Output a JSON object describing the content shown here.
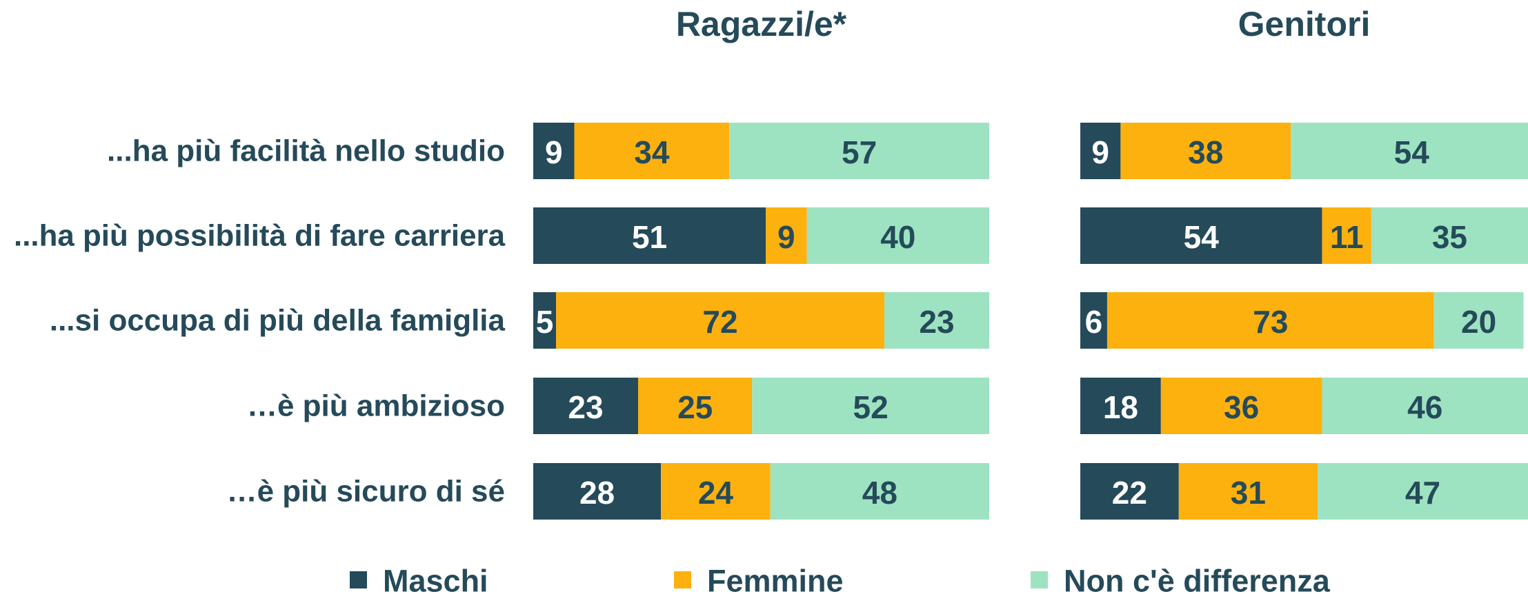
{
  "chart_data": [
    {
      "type": "bar",
      "orientation": "horizontal",
      "stacked": true,
      "title": "Ragazzi/e*",
      "categories": [
        "...ha più facilità nello studio",
        "...ha più possibilità di fare carriera",
        "...si occupa di più della famiglia",
        "…è più ambizioso",
        "…è più sicuro di sé"
      ],
      "xlim": [
        0,
        100
      ],
      "series": [
        {
          "name": "Maschi",
          "color": "#254a5a",
          "values": [
            9,
            51,
            5,
            23,
            28
          ]
        },
        {
          "name": "Femmine",
          "color": "#fcb10f",
          "values": [
            34,
            9,
            72,
            25,
            24
          ]
        },
        {
          "name": "Non c'è differenza",
          "color": "#9de3c1",
          "values": [
            57,
            40,
            23,
            52,
            48
          ]
        }
      ]
    },
    {
      "type": "bar",
      "orientation": "horizontal",
      "stacked": true,
      "title": "Genitori",
      "xlim": [
        0,
        100
      ],
      "series": [
        {
          "color": "#254a5a",
          "values": [
            9,
            54,
            6,
            18,
            22
          ]
        },
        {
          "color": "#fcb10f",
          "values": [
            38,
            11,
            73,
            36,
            31
          ]
        },
        {
          "color": "#9de3c1",
          "values": [
            54,
            35,
            20,
            46,
            47
          ]
        }
      ]
    }
  ]
}
